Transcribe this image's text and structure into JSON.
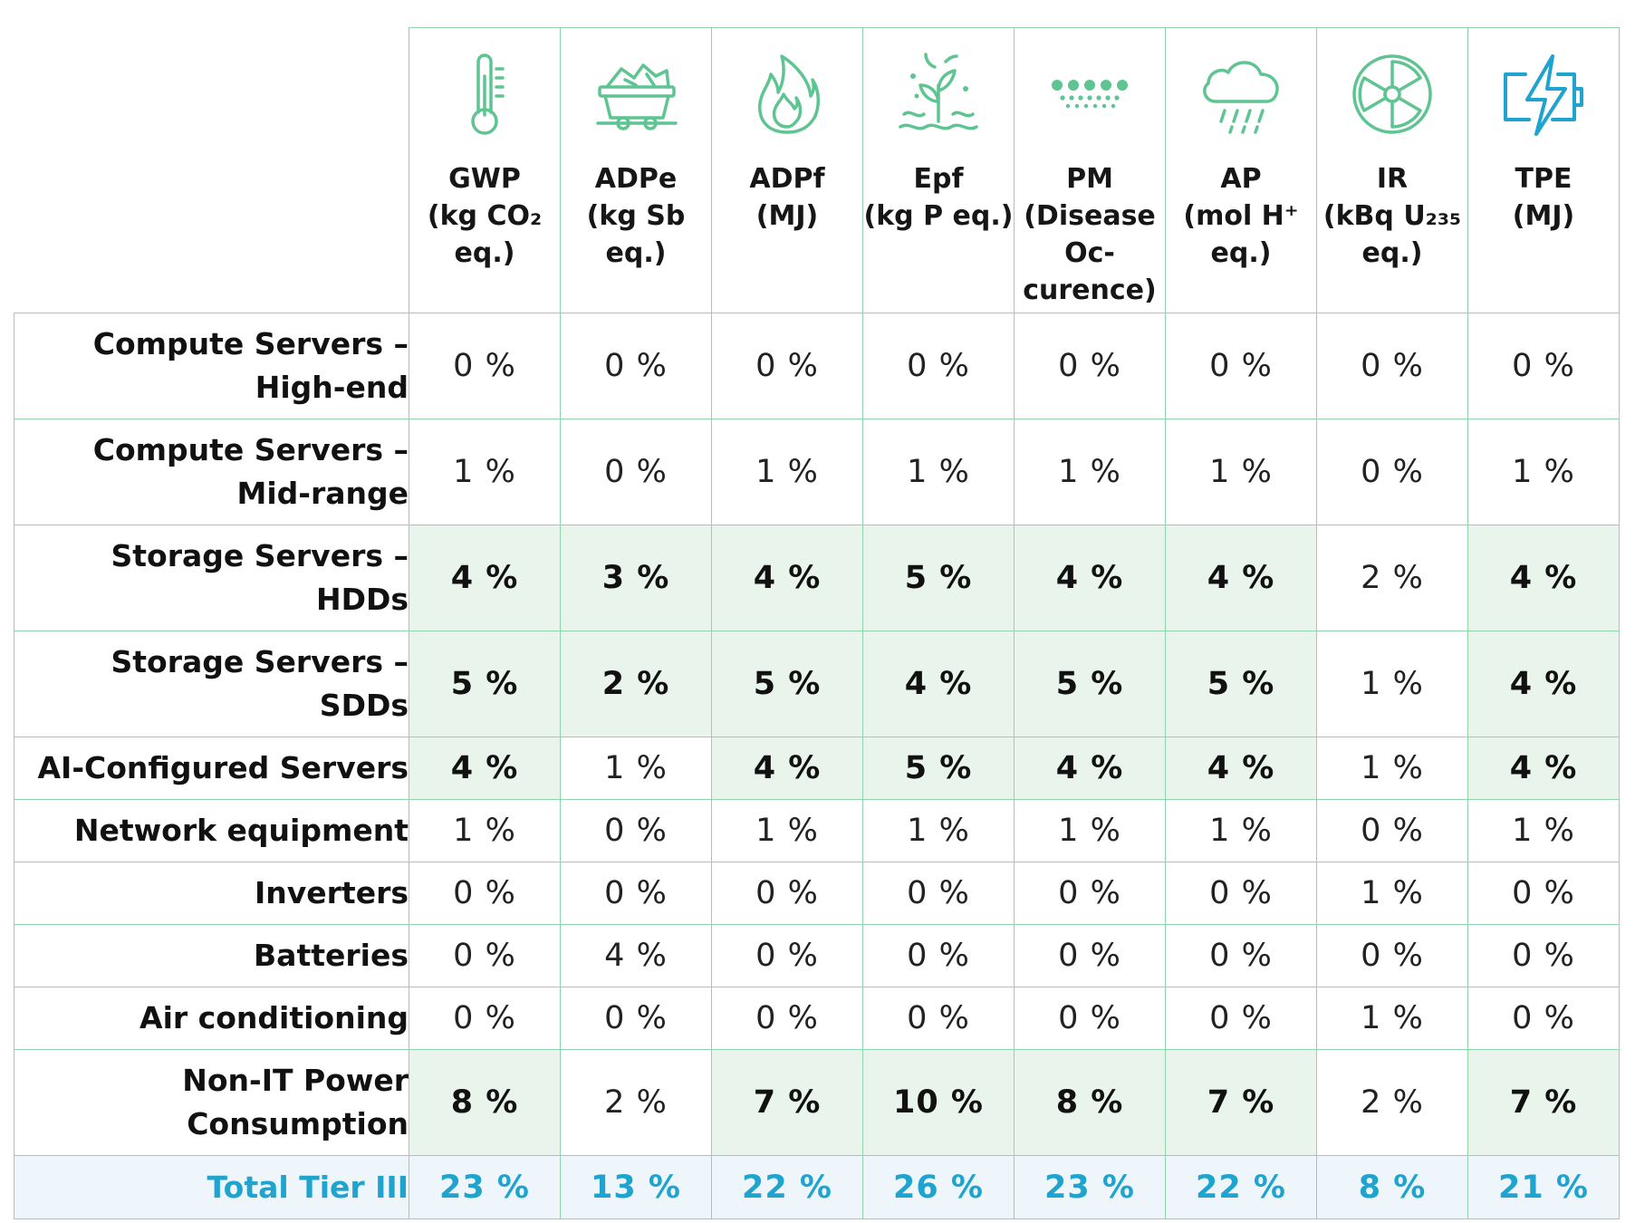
{
  "colors": {
    "accent_green": "#5ec491",
    "highlight_bg": "#e9f4ec",
    "total_blue": "#1fa3cf"
  },
  "columns": [
    {
      "name": "GWP",
      "unit": "(kg CO₂\neq.)",
      "icon": "thermometer-icon"
    },
    {
      "name": "ADPe",
      "unit": "(kg Sb eq.)",
      "icon": "mine-cart-icon"
    },
    {
      "name": "ADPf",
      "unit": "(MJ)",
      "icon": "flame-icon"
    },
    {
      "name": "Epf",
      "unit": "(kg P eq.)",
      "icon": "plant-water-icon"
    },
    {
      "name": "PM",
      "unit": "(Disease\nOc-\ncurence)",
      "icon": "particles-icon"
    },
    {
      "name": "AP",
      "unit": "(mol H⁺\neq.)",
      "icon": "acid-rain-cloud-icon"
    },
    {
      "name": "IR",
      "unit": "(kBq U₂₃₅\neq.)",
      "icon": "radiation-icon"
    },
    {
      "name": "TPE",
      "unit": "(MJ)",
      "icon": "battery-bolt-icon"
    }
  ],
  "rows": [
    {
      "label": "Compute Servers –\nHigh-end",
      "values": [
        "0 %",
        "0 %",
        "0 %",
        "0 %",
        "0 %",
        "0 %",
        "0 %",
        "0 %"
      ],
      "highlight": [
        0,
        0,
        0,
        0,
        0,
        0,
        0,
        0
      ]
    },
    {
      "label": "Compute Servers –\nMid-range",
      "values": [
        "1 %",
        "0 %",
        "1 %",
        "1 %",
        "1 %",
        "1 %",
        "0 %",
        "1 %"
      ],
      "highlight": [
        0,
        0,
        0,
        0,
        0,
        0,
        0,
        0
      ]
    },
    {
      "label": "Storage Servers –\nHDDs",
      "values": [
        "4 %",
        "3 %",
        "4 %",
        "5 %",
        "4 %",
        "4 %",
        "2 %",
        "4 %"
      ],
      "highlight": [
        1,
        1,
        1,
        1,
        1,
        1,
        0,
        1
      ]
    },
    {
      "label": "Storage Servers –\nSDDs",
      "values": [
        "5 %",
        "2 %",
        "5 %",
        "4 %",
        "5 %",
        "5 %",
        "1 %",
        "4 %"
      ],
      "highlight": [
        1,
        1,
        1,
        1,
        1,
        1,
        0,
        1
      ]
    },
    {
      "label": "AI-Configured Servers",
      "values": [
        "4 %",
        "1 %",
        "4 %",
        "5 %",
        "4 %",
        "4 %",
        "1 %",
        "4 %"
      ],
      "highlight": [
        1,
        0,
        1,
        1,
        1,
        1,
        0,
        1
      ]
    },
    {
      "label": "Network equipment",
      "values": [
        "1 %",
        "0 %",
        "1 %",
        "1 %",
        "1 %",
        "1 %",
        "0 %",
        "1 %"
      ],
      "highlight": [
        0,
        0,
        0,
        0,
        0,
        0,
        0,
        0
      ]
    },
    {
      "label": "Inverters",
      "values": [
        "0 %",
        "0 %",
        "0 %",
        "0 %",
        "0 %",
        "0 %",
        "1 %",
        "0 %"
      ],
      "highlight": [
        0,
        0,
        0,
        0,
        0,
        0,
        0,
        0
      ]
    },
    {
      "label": "Batteries",
      "values": [
        "0 %",
        "4 %",
        "0 %",
        "0 %",
        "0 %",
        "0 %",
        "0 %",
        "0 %"
      ],
      "highlight": [
        0,
        0,
        0,
        0,
        0,
        0,
        0,
        0
      ]
    },
    {
      "label": "Air conditioning",
      "values": [
        "0 %",
        "0 %",
        "0 %",
        "0 %",
        "0 %",
        "0 %",
        "1 %",
        "0 %"
      ],
      "highlight": [
        0,
        0,
        0,
        0,
        0,
        0,
        0,
        0
      ]
    },
    {
      "label": "Non-IT Power\nConsumption",
      "values": [
        "8 %",
        "2 %",
        "7 %",
        "10 %",
        "8 %",
        "7 %",
        "2 %",
        "7 %"
      ],
      "highlight": [
        1,
        0,
        1,
        1,
        1,
        1,
        0,
        1
      ]
    }
  ],
  "total": {
    "label": "Total Tier III",
    "values": [
      "23 %",
      "13 %",
      "22 %",
      "26 %",
      "23 %",
      "22 %",
      "8 %",
      "21 %"
    ]
  }
}
